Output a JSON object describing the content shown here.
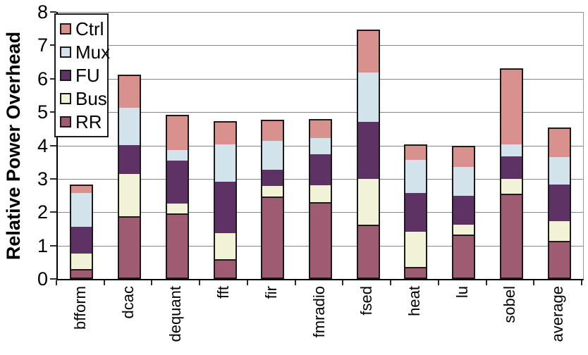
{
  "chart_data": {
    "type": "bar",
    "stacked": true,
    "title": "",
    "xlabel": "",
    "ylabel": "Relative Power Overhead",
    "ylim": [
      0,
      8
    ],
    "yticks": [
      0,
      1,
      2,
      3,
      4,
      5,
      6,
      7,
      8
    ],
    "grid": true,
    "legend_position": "top-left-inside",
    "legend_order_top_to_bottom": [
      "Ctrl",
      "Mux",
      "FU",
      "Bus",
      "RR"
    ],
    "categories": [
      "bfform",
      "dcac",
      "dequant",
      "fft",
      "fir",
      "fmradio",
      "fsed",
      "heat",
      "lu",
      "sobel",
      "average"
    ],
    "series": [
      {
        "name": "RR",
        "color": "#9F5B72",
        "values": [
          0.3,
          1.87,
          1.97,
          0.6,
          2.48,
          2.3,
          1.62,
          0.36,
          1.33,
          2.56,
          1.13
        ]
      },
      {
        "name": "Bus",
        "color": "#F2F2D6",
        "values": [
          0.46,
          1.28,
          0.28,
          0.77,
          0.31,
          0.5,
          1.38,
          1.05,
          0.29,
          0.44,
          0.61
        ]
      },
      {
        "name": "FU",
        "color": "#5F3266",
        "values": [
          0.8,
          0.87,
          1.3,
          1.55,
          0.49,
          0.93,
          1.7,
          1.16,
          0.88,
          0.68,
          1.08
        ]
      },
      {
        "name": "Mux",
        "color": "#D2E3EC",
        "values": [
          1.02,
          1.1,
          0.32,
          1.11,
          0.86,
          0.5,
          1.49,
          0.99,
          0.86,
          0.35,
          0.84
        ]
      },
      {
        "name": "Ctrl",
        "color": "#D8918C",
        "values": [
          0.2,
          0.97,
          1.01,
          0.65,
          0.59,
          0.52,
          1.24,
          0.42,
          0.59,
          2.25,
          0.84
        ]
      }
    ],
    "totals": [
      2.78,
      6.09,
      4.88,
      4.68,
      4.73,
      4.75,
      7.43,
      3.98,
      3.95,
      6.28,
      4.5
    ],
    "colors": {
      "gridline": "#868686",
      "axis": "#000000",
      "segment_border": "#1a1a1a",
      "background": "#ffffff"
    }
  }
}
